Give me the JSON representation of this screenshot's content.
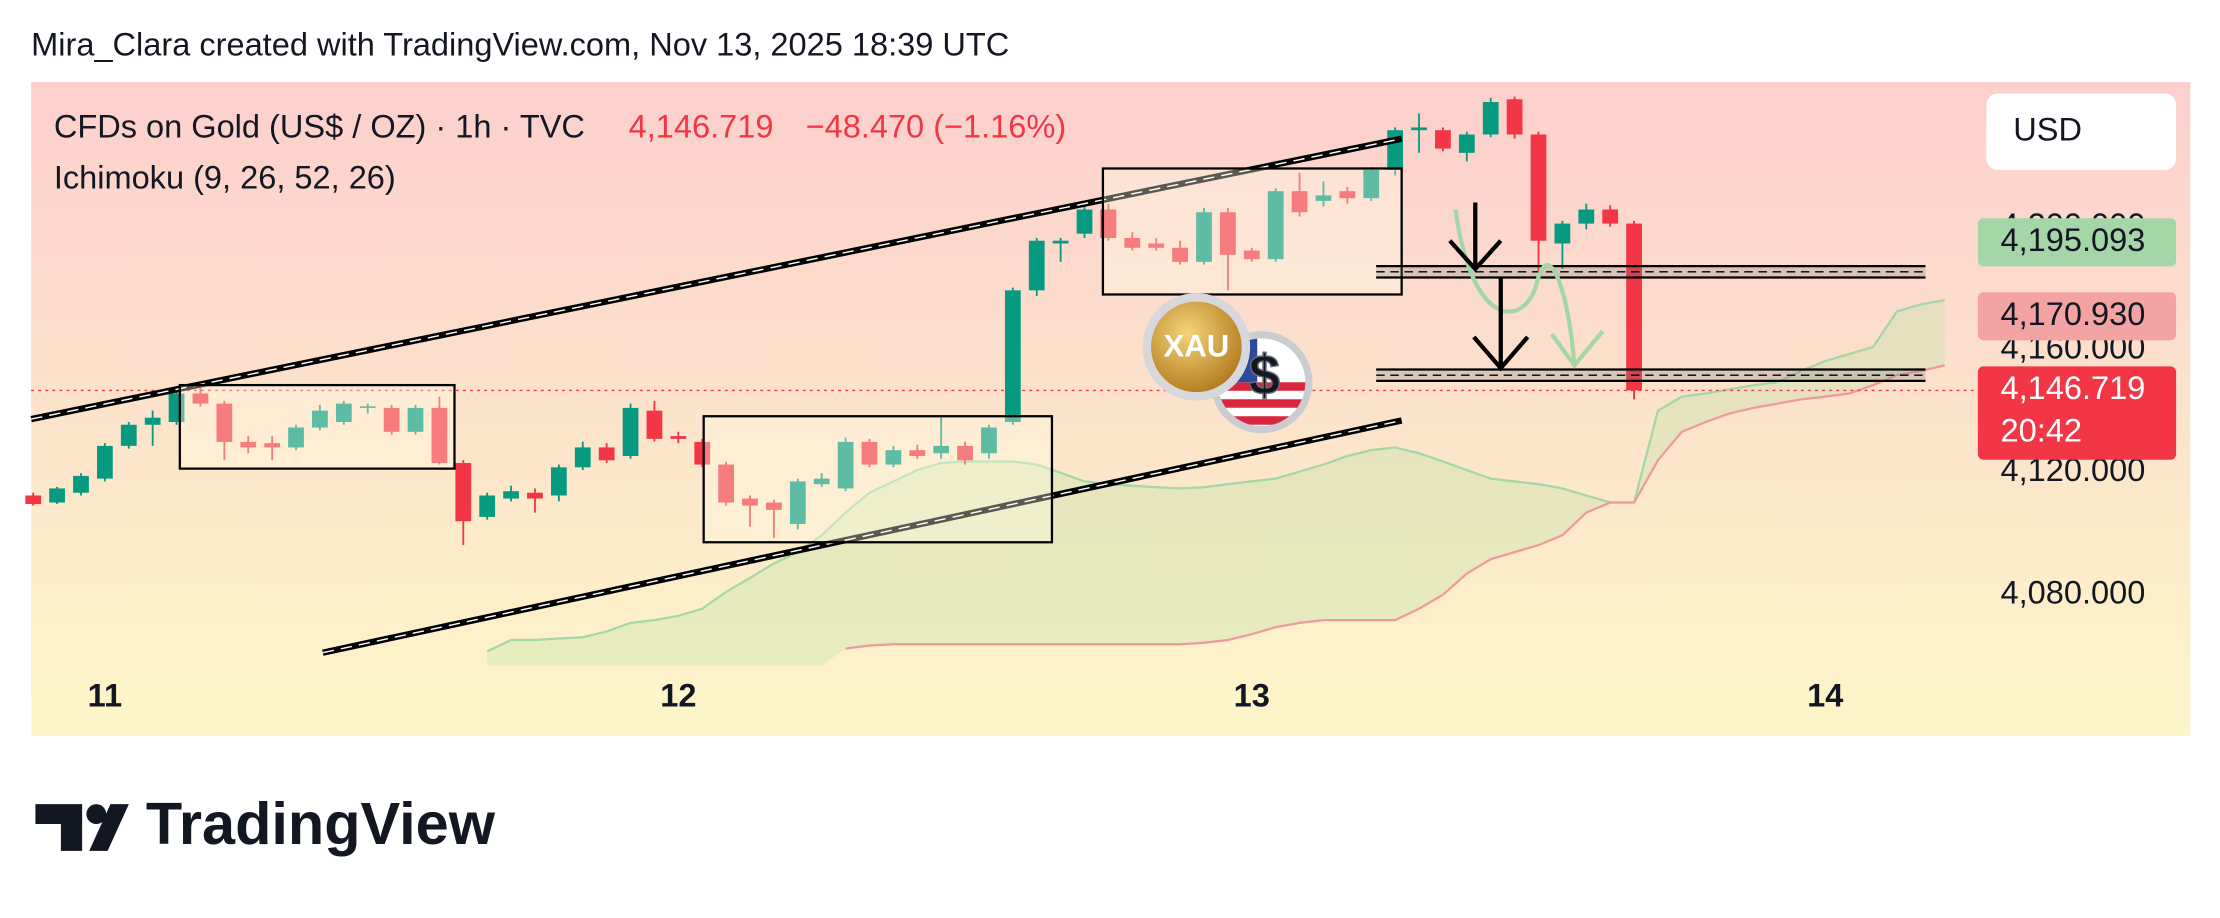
{
  "header": {
    "attribution": "Mira_Clara created with TradingView.com, Nov 13, 2025 18:39 UTC"
  },
  "chart_data": {
    "type": "candlestick",
    "title": "CFDs on Gold (US$ / OZ) · 1h · TVC",
    "last_value": "4,146.719",
    "change": "−48.470 (−1.16%)",
    "indicator": "Ichimoku (9, 26, 52, 26)",
    "currency": "USD",
    "up_color": "#089981",
    "down_color": "#f23645",
    "grid": false,
    "categories": [
      null,
      null,
      null,
      "11",
      null,
      null,
      null,
      null,
      null,
      null,
      null,
      null,
      null,
      null,
      null,
      null,
      null,
      null,
      null,
      null,
      null,
      null,
      null,
      null,
      null,
      null,
      null,
      "12",
      null,
      null,
      null,
      null,
      null,
      null,
      null,
      null,
      null,
      null,
      null,
      null,
      null,
      null,
      null,
      null,
      null,
      null,
      null,
      null,
      null,
      null,
      null,
      "13",
      null,
      null,
      null,
      null,
      null,
      null,
      null,
      null,
      null,
      null,
      null,
      null,
      null,
      null,
      null,
      null,
      null,
      null,
      null,
      null,
      null,
      null,
      null,
      "14",
      null,
      null,
      null,
      null,
      null
    ],
    "open": [
      4112.4,
      4110.1,
      4113.3,
      4117.9,
      4128.6,
      4135.5,
      4136.4,
      4145.7,
      4142.4,
      4129.9,
      4129.5,
      4128.1,
      4134.6,
      4136.4,
      4141.0,
      4141.0,
      4133.2,
      4141.0,
      4123.0,
      4105.4,
      4111.4,
      4113.3,
      4112.4,
      4121.6,
      4128.1,
      4125.3,
      4140.1,
      4131.8,
      4129.9,
      4122.5,
      4111.4,
      4110.1,
      4103.1,
      4116.1,
      4114.7,
      4129.9,
      4122.5,
      4127.2,
      4126.2,
      4128.6,
      4126.2,
      4136.4,
      4179.4,
      4194.7,
      4197.9,
      4205.8,
      4196.5,
      4194.7,
      4193.3,
      4188.7,
      4204.9,
      4192.4,
      4189.6,
      4211.8,
      4208.6,
      4211.8,
      4209.5,
      4218.7,
      4231.7,
      4231.7,
      4224.3,
      4230.3,
      4241.8,
      4230.3,
      4194.7,
      4201.2,
      4205.8,
      4201.2,
      null,
      null,
      null,
      null,
      null,
      null,
      null,
      null,
      null,
      null,
      null,
      null,
      null
    ],
    "high": [
      4113.3,
      4115.2,
      4119.7,
      4129.5,
      4136.4,
      4140.1,
      4147.0,
      4147.5,
      4143.3,
      4131.8,
      4131.8,
      4135.5,
      4142.0,
      4143.3,
      4142.4,
      4142.0,
      4142.0,
      4144.7,
      4123.9,
      4113.3,
      4115.6,
      4114.7,
      4122.5,
      4130.0,
      4129.5,
      4142.4,
      4143.3,
      4133.2,
      4130.9,
      4123.4,
      4112.4,
      4111.0,
      4117.9,
      4119.7,
      4131.3,
      4130.9,
      4128.6,
      4129.0,
      4137.8,
      4130.0,
      4135.5,
      4180.3,
      4196.5,
      4196.5,
      4207.2,
      4207.7,
      4198.4,
      4196.5,
      4195.6,
      4206.3,
      4206.3,
      4193.3,
      4212.7,
      4217.8,
      4215.0,
      4213.2,
      4219.6,
      4232.6,
      4237.2,
      4232.6,
      4231.2,
      4242.3,
      4242.7,
      4231.2,
      4202.1,
      4207.7,
      4207.2,
      4202.1,
      null,
      null,
      null,
      null,
      null,
      null,
      null,
      null,
      null,
      null,
      null,
      null,
      null
    ],
    "low": [
      4109.1,
      4109.6,
      4112.4,
      4117.0,
      4127.7,
      4128.6,
      4135.5,
      4141.5,
      4123.9,
      4126.2,
      4123.9,
      4127.2,
      4133.7,
      4135.5,
      4139.2,
      4132.3,
      4132.3,
      4122.5,
      4096.2,
      4104.5,
      4110.5,
      4106.8,
      4110.5,
      4120.7,
      4123.0,
      4124.4,
      4130.0,
      4129.5,
      4121.6,
      4109.1,
      4102.2,
      4098.5,
      4101.3,
      4115.2,
      4113.8,
      4121.6,
      4121.6,
      4124.4,
      4124.4,
      4122.5,
      4124.4,
      4135.5,
      4177.5,
      4188.7,
      4196.5,
      4195.6,
      4192.4,
      4192.4,
      4187.8,
      4187.8,
      4179.4,
      4188.7,
      4188.7,
      4203.5,
      4206.8,
      4207.7,
      4208.6,
      4216.9,
      4224.3,
      4224.8,
      4221.5,
      4229.4,
      4228.9,
      4184.0,
      4186.4,
      4199.3,
      4200.2,
      4143.8,
      null,
      null,
      null,
      null,
      null,
      null,
      null,
      null,
      null,
      null,
      null,
      null,
      null
    ],
    "close": [
      4109.6,
      4114.7,
      4118.8,
      4128.6,
      4135.5,
      4137.8,
      4145.7,
      4142.4,
      4129.9,
      4128.1,
      4128.1,
      4134.6,
      4140.1,
      4142.4,
      4141.5,
      4133.2,
      4141.0,
      4123.0,
      4104.0,
      4112.4,
      4113.8,
      4111.4,
      4121.6,
      4128.1,
      4123.9,
      4141.0,
      4130.9,
      4130.9,
      4122.5,
      4110.1,
      4109.1,
      4107.7,
      4117.0,
      4117.9,
      4129.9,
      4122.5,
      4127.2,
      4125.3,
      4128.6,
      4123.9,
      4134.6,
      4179.4,
      4195.6,
      4195.6,
      4205.8,
      4196.5,
      4193.3,
      4193.3,
      4188.7,
      4204.9,
      4191.0,
      4189.6,
      4211.8,
      4204.9,
      4210.4,
      4209.5,
      4218.7,
      4231.7,
      4232.6,
      4225.7,
      4230.3,
      4240.9,
      4230.3,
      4195.6,
      4201.2,
      4205.8,
      4201.2,
      4146.719,
      null,
      null,
      null,
      null,
      null,
      null,
      null,
      null,
      null,
      null,
      null,
      null,
      null
    ],
    "ichimoku": {
      "span_a": {
        "color": "#a5d6a7",
        "values": [
          null,
          null,
          null,
          null,
          null,
          null,
          null,
          null,
          null,
          null,
          null,
          null,
          null,
          null,
          null,
          null,
          null,
          null,
          null,
          4061.5,
          4065.2,
          4065.2,
          4065.7,
          4066.1,
          4068.0,
          4070.8,
          4071.7,
          4073.1,
          4075.4,
          4080.9,
          4085.5,
          4090.2,
          4093.9,
          4099.4,
          4106.8,
          4113.3,
          4117.0,
          4120.7,
          4123.0,
          4123.5,
          4123.5,
          4123.5,
          4122.5,
          4119.8,
          4117.0,
          4116.1,
          4115.6,
          4115.1,
          4114.7,
          4115.1,
          4116.1,
          4117.0,
          4117.9,
          4120.2,
          4122.5,
          4125.3,
          4127.2,
          4128.1,
          4126.2,
          4123.5,
          4120.7,
          4117.9,
          4117.0,
          4116.1,
          4114.7,
          4112.4,
          4110.1,
          4110.1,
          4140.1,
          4144.7,
          4145.7,
          4147.1,
          4148.4,
          4149.4,
          4153.1,
          4156.3,
          4158.6,
          4160.9,
          4172.5,
          4174.8,
          4176.2
        ]
      },
      "span_b": {
        "color": "#ef9a9a",
        "values": [
          null,
          null,
          null,
          null,
          null,
          null,
          null,
          null,
          null,
          null,
          null,
          null,
          null,
          null,
          null,
          null,
          null,
          null,
          null,
          null,
          null,
          null,
          null,
          null,
          null,
          null,
          null,
          null,
          null,
          null,
          null,
          null,
          null,
          null,
          4062.4,
          4063.4,
          4063.8,
          4063.8,
          4063.8,
          4063.8,
          4063.8,
          4063.8,
          4063.8,
          4063.8,
          4063.8,
          4063.8,
          4063.8,
          4063.8,
          4063.8,
          4064.3,
          4065.2,
          4067.1,
          4069.4,
          4070.8,
          4071.7,
          4071.7,
          4071.7,
          4071.7,
          4075.4,
          4080.0,
          4086.9,
          4091.6,
          4093.9,
          4096.2,
          4099.4,
          4106.8,
          4110.1,
          4110.1,
          4123.9,
          4133.2,
          4136.4,
          4139.2,
          4141.0,
          4142.4,
          4143.8,
          4144.7,
          4145.7,
          4148.4,
          4151.7,
          4153.1,
          4154.9
        ]
      }
    },
    "ylim": [
      4056.9,
      4247.4
    ],
    "yticks": [
      {
        "value": 4080,
        "label": "4,080.000"
      },
      {
        "value": 4120,
        "label": "4,120.000"
      },
      {
        "value": 4160,
        "label": "4,160.000"
      },
      {
        "value": 4200,
        "label": "4,200.000"
      }
    ],
    "price_labels": [
      {
        "value": 4195.093,
        "label": "4,195.093",
        "color": "#a5d6a7"
      },
      {
        "value": 4170.93,
        "label": "4,170.930",
        "color": "#f4a3a3"
      },
      {
        "value": 4146.719,
        "label": "4,146.719",
        "color": "#f23645",
        "countdown": "20:42"
      }
    ]
  },
  "footer": {
    "brand": "TradingView"
  }
}
